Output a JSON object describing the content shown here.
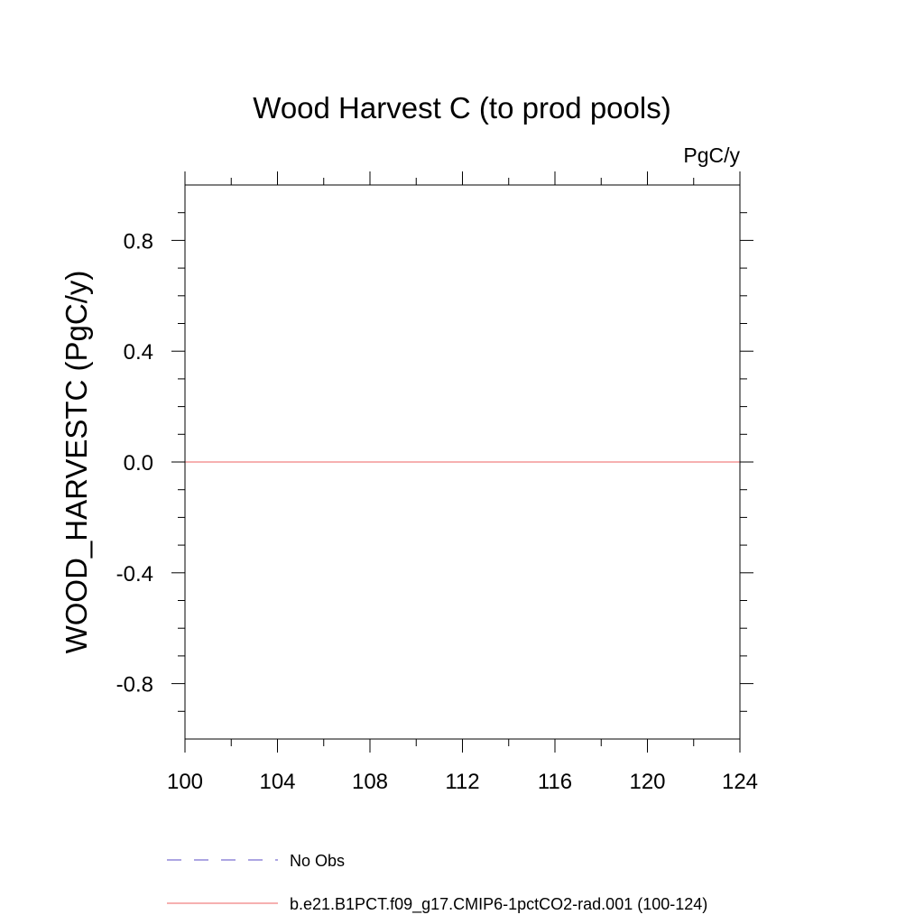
{
  "chart_data": {
    "type": "line",
    "title": "Wood Harvest C (to prod pools)",
    "units": "PgC/y",
    "xlabel": "",
    "ylabel": "WOOD_HARVESTC  (PgC/y)",
    "xlim": [
      100,
      124
    ],
    "ylim": [
      -1.0,
      1.0
    ],
    "x_ticks": [
      100,
      104,
      108,
      112,
      116,
      120,
      124
    ],
    "x_tick_labels": [
      "100",
      "104",
      "108",
      "112",
      "116",
      "120",
      "124"
    ],
    "y_ticks": [
      -0.8,
      -0.4,
      0.0,
      0.4,
      0.8
    ],
    "y_tick_labels": [
      "-0.8",
      "-0.4",
      "0.0",
      "0.4",
      "0.8"
    ],
    "grid": false,
    "legend_position": "bottom",
    "series": [
      {
        "name": "No Obs",
        "color": "#7b6fd0",
        "dash": "dashed",
        "x": [],
        "y": []
      },
      {
        "name": "b.e21.B1PCT.f09_g17.CMIP6-1pctCO2-rad.001 (100-124)",
        "color": "#f08080",
        "dash": "solid",
        "x": [
          100,
          124
        ],
        "y": [
          0.0,
          0.0
        ]
      }
    ]
  }
}
